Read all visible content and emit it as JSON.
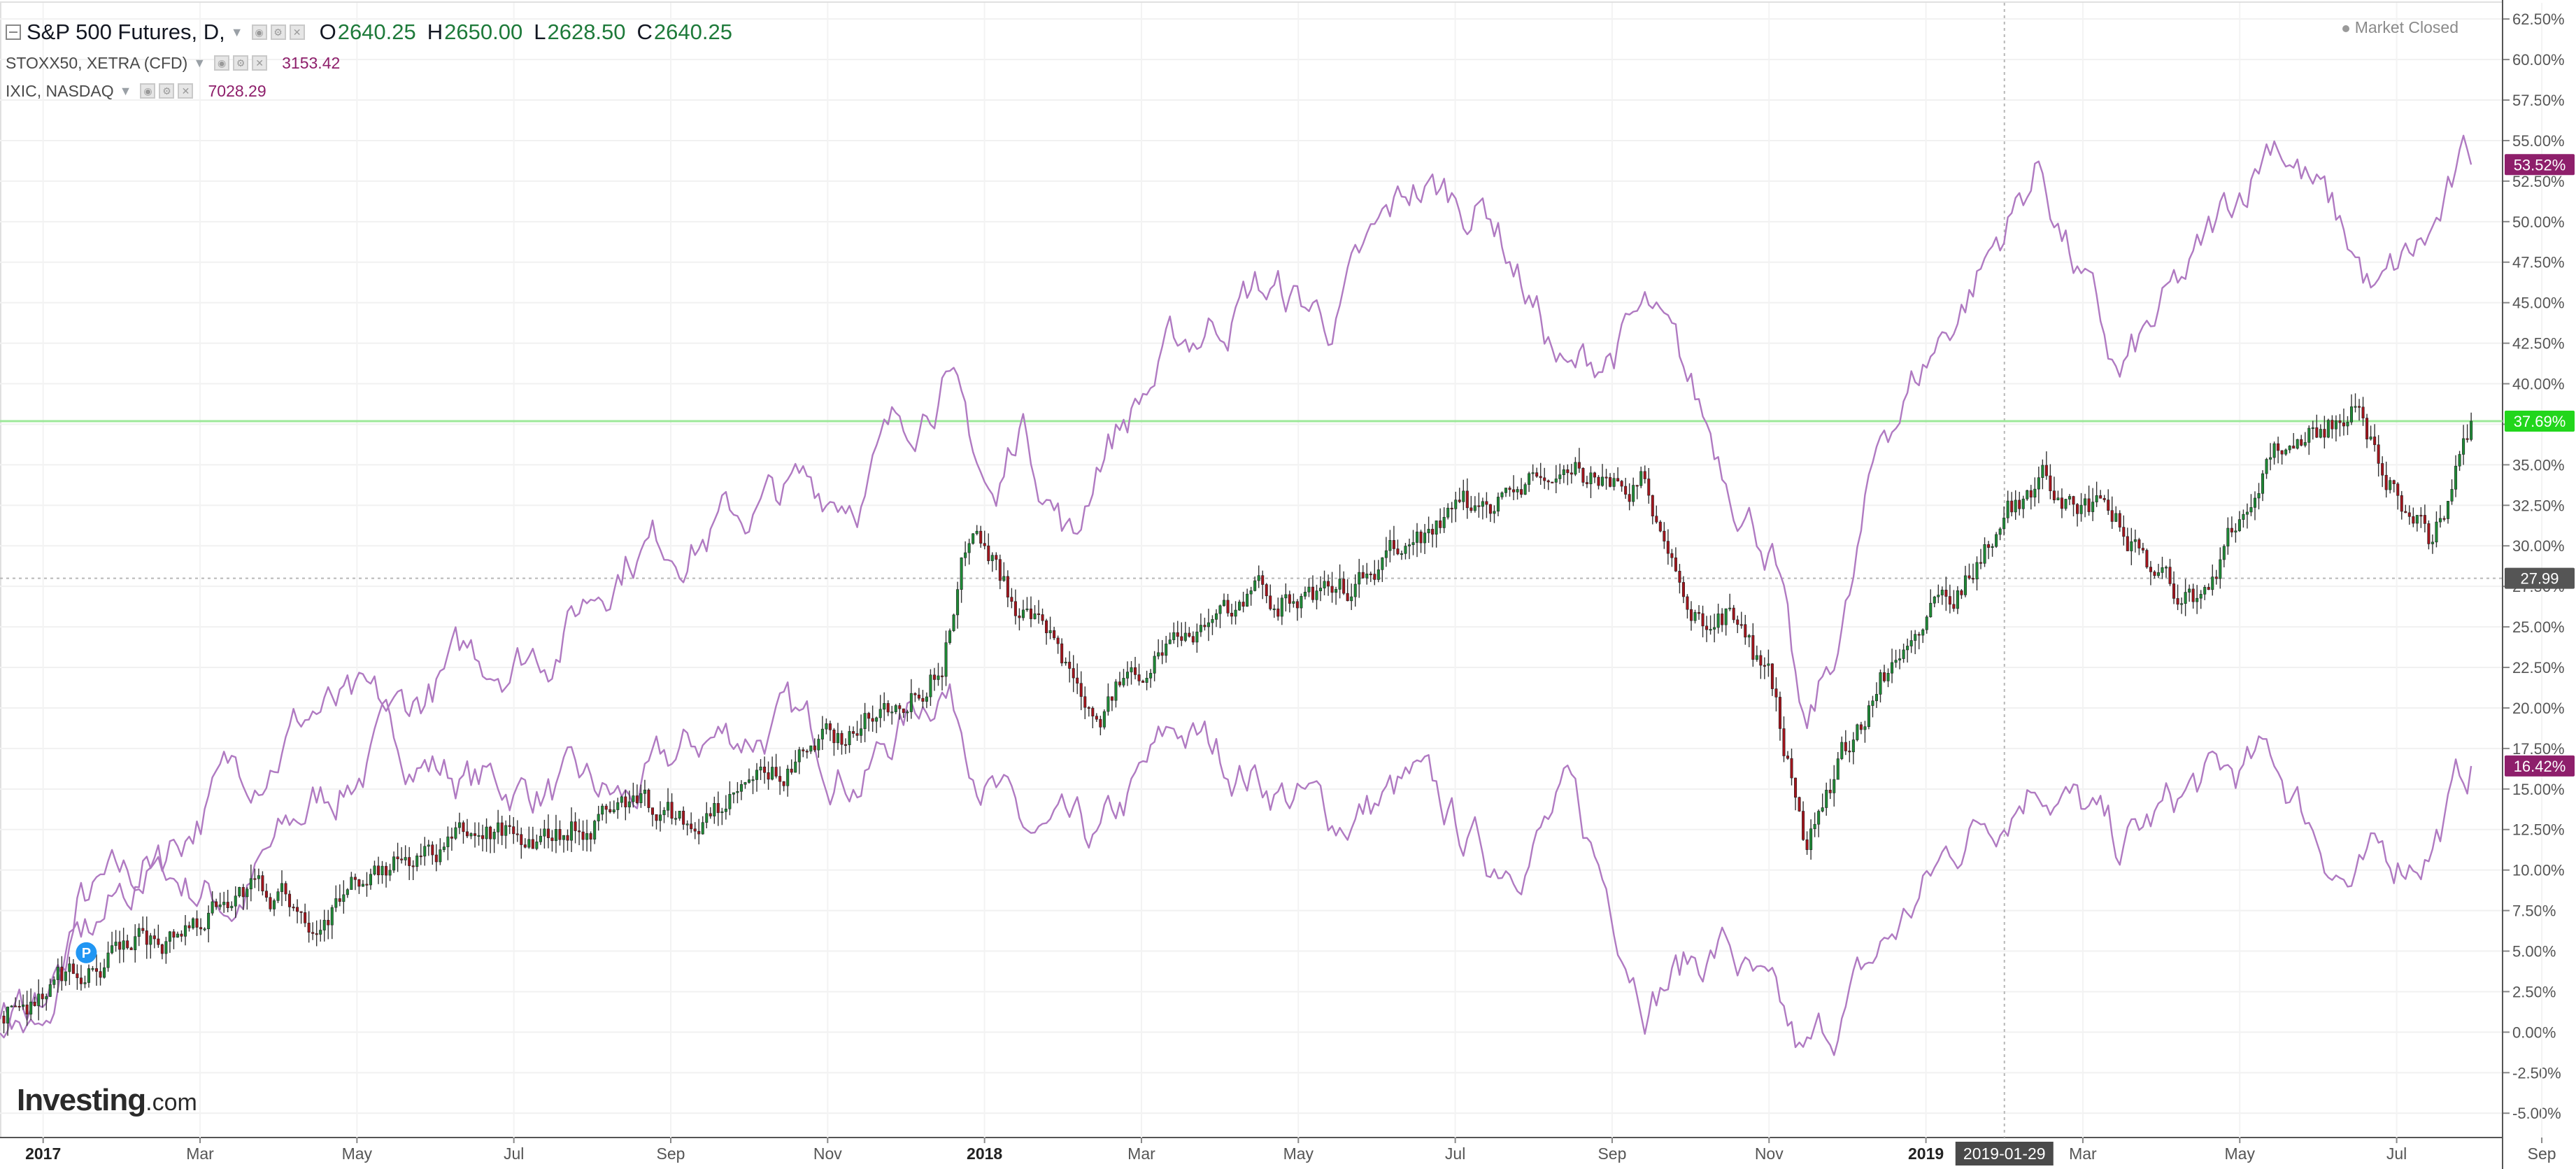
{
  "legend": {
    "main": {
      "title": "S&P 500 Futures, D,",
      "o_label": "O",
      "o": "2640.25",
      "h_label": "H",
      "h": "2650.00",
      "l_label": "L",
      "l": "2628.50",
      "c_label": "C",
      "c": "2640.25"
    },
    "compare": [
      {
        "name": "STOXX50, XETRA (CFD)",
        "value": "3153.42"
      },
      {
        "name": "IXIC, NASDAQ",
        "value": "7028.29"
      }
    ]
  },
  "status": "Market Closed",
  "logo": {
    "word": "Investing",
    "suffix": ".com"
  },
  "colors": {
    "up": "#1e8a36",
    "down": "#a3141c",
    "compare_line": "#b07ac2",
    "tag_purple": "#8e1f6b",
    "tag_green": "#22d61c",
    "tag_gray": "#555555",
    "hline": "#9de89a",
    "crosshair_tag": "#4a4a4a"
  },
  "icons": {
    "collapse": "minus-square-icon",
    "marker": "p-marker-icon"
  },
  "chart_data": {
    "type": "line",
    "x_ticks": [
      "2017",
      "Mar",
      "May",
      "Jul",
      "Sep",
      "Nov",
      "2018",
      "Mar",
      "May",
      "Jul",
      "Sep",
      "Nov",
      "2019",
      "2019-01-29",
      "Mar",
      "May",
      "Jul",
      "Sep"
    ],
    "y_ticks": [
      "62.50%",
      "60.00%",
      "57.50%",
      "55.00%",
      "52.50%",
      "50.00%",
      "47.50%",
      "45.00%",
      "42.50%",
      "40.00%",
      "37.50%",
      "35.00%",
      "32.50%",
      "30.00%",
      "27.50%",
      "25.00%",
      "22.50%",
      "20.00%",
      "17.50%",
      "15.00%",
      "12.50%",
      "10.00%",
      "7.50%",
      "5.00%",
      "2.50%",
      "0.00%",
      "-2.50%",
      "-5.00%"
    ],
    "ylim": [
      -6.5,
      63.5
    ],
    "y_unit": "%",
    "crosshair": {
      "x_label": "2019-01-29",
      "y_label": "27.99",
      "y": 28.0
    },
    "price_line": {
      "y": 37.69
    },
    "series": [
      {
        "name": "S&P 500 Futures",
        "style": "candles",
        "last_label": "37.69%",
        "x": [
          0,
          1,
          2,
          3,
          4,
          5,
          6,
          7,
          8,
          9,
          10,
          11,
          12,
          12.4,
          13,
          14,
          15,
          16,
          17,
          18,
          19,
          20,
          21,
          21.5,
          22,
          22.6,
          23,
          24,
          25,
          26,
          27,
          28,
          29,
          30,
          31,
          31.5
        ],
        "y": [
          1.0,
          4.0,
          5.5,
          9.0,
          7.5,
          10.0,
          12.0,
          12.5,
          14.0,
          13.0,
          16.0,
          19.0,
          23.0,
          32.0,
          26.0,
          20.0,
          25.0,
          27.0,
          26.5,
          30.0,
          33.0,
          34.5,
          34.0,
          25.0,
          26.0,
          21.0,
          12.0,
          22.0,
          28.0,
          34.5,
          31.0,
          26.5,
          36.0,
          38.5,
          30.0,
          37.69
        ]
      },
      {
        "name": "STOXX50, XETRA (CFD)",
        "style": "line",
        "last_label": "16.42%",
        "x": [
          0,
          0.6,
          1,
          2,
          3,
          4,
          5,
          6,
          7,
          8,
          9,
          10,
          11,
          12,
          12.5,
          13,
          14,
          15,
          16,
          17,
          18,
          19,
          20,
          21,
          22,
          23,
          24,
          25,
          26,
          27,
          28,
          29,
          30,
          31,
          31.5
        ],
        "y": [
          2.0,
          -1.0,
          7.5,
          10.0,
          8.0,
          14.0,
          18.0,
          15.5,
          15.0,
          14.0,
          18.0,
          19.0,
          16.0,
          22.0,
          17.0,
          12.0,
          11.0,
          18.5,
          16.0,
          13.0,
          15.0,
          10.5,
          14.0,
          3.0,
          5.5,
          -2.5,
          5.0,
          12.0,
          16.5,
          11.0,
          15.0,
          16.5,
          9.0,
          12.0,
          16.42
        ]
      },
      {
        "name": "IXIC, NASDAQ",
        "style": "line",
        "last_label": "53.52%",
        "x": [
          0,
          1,
          2,
          3,
          4,
          5,
          6,
          7,
          8,
          9,
          10,
          11,
          12,
          12.7,
          13,
          13.7,
          14,
          15,
          16,
          17,
          18,
          19,
          20,
          21,
          22,
          22.6,
          23,
          23.6,
          24,
          25,
          26,
          27,
          28,
          29,
          30,
          30.3,
          31,
          31.5
        ],
        "y": [
          0.0,
          5.0,
          11.0,
          16.0,
          20.0,
          19.0,
          23.0,
          24.0,
          30.0,
          31.0,
          33.0,
          34.0,
          41.0,
          32.0,
          38.0,
          30.0,
          36.0,
          42.0,
          46.0,
          44.0,
          52.0,
          51.0,
          40.0,
          44.0,
          35.0,
          30.0,
          17.0,
          27.0,
          37.0,
          45.0,
          53.5,
          40.0,
          47.0,
          56.0,
          48.0,
          45.0,
          49.0,
          53.52
        ]
      }
    ],
    "grid": true,
    "legend_position": "top-left"
  }
}
